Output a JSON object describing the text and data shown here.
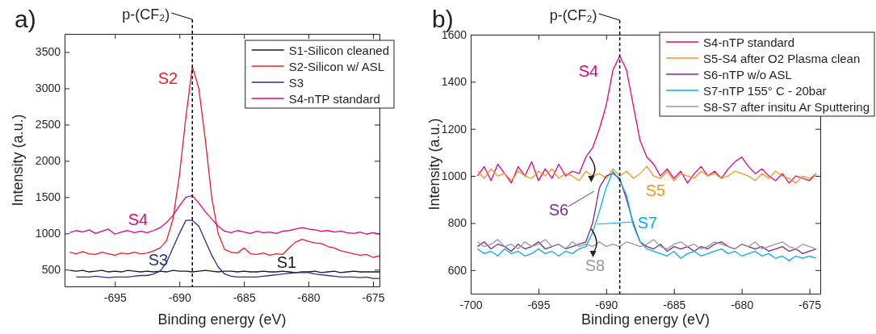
{
  "chart_data": [
    {
      "type": "line",
      "annotations": [
        "a)",
        "S2",
        "S4",
        "S3",
        "S1"
      ],
      "xlabel": "Binding energy (eV)",
      "ylabel": "Intensity (a.u.)",
      "xlim": [
        -698.9,
        -674.5
      ],
      "xticks": [
        -695,
        -690,
        -685,
        -680,
        -675
      ],
      "ylim": [
        270,
        3750
      ],
      "yticks": [
        500,
        1000,
        1500,
        2000,
        2500,
        3000,
        3500
      ],
      "legend": "top right",
      "ref_lines": [
        {
          "axis": "x",
          "value": -689,
          "label": "p-(CF₂)",
          "line_style": "dashed",
          "color": "#000000"
        }
      ],
      "x": [
        -698.5,
        -698,
        -697.5,
        -697,
        -696.5,
        -696,
        -695.5,
        -695,
        -694.5,
        -694,
        -693.5,
        -693,
        -692.5,
        -692,
        -691.5,
        -691,
        -690.5,
        -690,
        -689.5,
        -689,
        -688.5,
        -688,
        -687.5,
        -687,
        -686.5,
        -686,
        -685.5,
        -685,
        -684.5,
        -684,
        -683.5,
        -683,
        -682.5,
        -682,
        -681.5,
        -681,
        -680.5,
        -680,
        -679.5,
        -679,
        -678.5,
        -678,
        -677.5,
        -677,
        -676.5,
        -676,
        -675.5,
        -675,
        -674.5
      ],
      "series": [
        {
          "name": "S1-Silicon cleaned",
          "color": "#1a1a1a",
          "values": [
            490,
            480,
            490,
            470,
            480,
            490,
            470,
            480,
            470,
            490,
            480,
            470,
            480,
            470,
            480,
            470,
            490,
            480,
            480,
            470,
            480,
            490,
            480,
            470,
            480,
            480,
            470,
            480,
            470,
            470,
            480,
            470,
            470,
            480,
            470,
            460,
            470,
            470,
            480,
            460,
            470,
            480,
            460,
            470,
            480,
            470,
            470,
            470,
            470
          ]
        },
        {
          "name": "S2-Silicon w/ ASL",
          "color": "#ee1c25",
          "values": [
            740,
            720,
            750,
            720,
            710,
            740,
            720,
            700,
            730,
            720,
            740,
            720,
            730,
            760,
            800,
            900,
            1200,
            1800,
            2600,
            3300,
            3000,
            2300,
            1500,
            1000,
            780,
            740,
            730,
            800,
            720,
            710,
            730,
            700,
            720,
            710,
            800,
            880,
            920,
            890,
            870,
            860,
            820,
            800,
            760,
            740,
            720,
            700,
            710,
            670,
            690
          ]
        },
        {
          "name": "S3",
          "color": "#262f8f",
          "values": [
            null,
            400,
            400,
            400,
            410,
            400,
            390,
            400,
            400,
            400,
            410,
            420,
            420,
            440,
            480,
            600,
            800,
            1000,
            1180,
            1180,
            1100,
            900,
            700,
            540,
            440,
            410,
            400,
            400,
            400,
            400,
            410,
            420,
            430,
            440,
            450,
            460,
            460,
            460,
            440,
            430,
            420,
            410,
            400,
            400,
            400,
            390,
            400,
            380,
            380
          ]
        },
        {
          "name": "S4-nTP standard",
          "color": "#e6007e",
          "values": [
            1010,
            1040,
            1020,
            1050,
            1000,
            1030,
            1060,
            990,
            1020,
            1040,
            1010,
            1030,
            1010,
            1040,
            1080,
            1150,
            1250,
            1380,
            1500,
            1520,
            1420,
            1300,
            1200,
            1100,
            1030,
            1010,
            1040,
            1020,
            1000,
            1030,
            1010,
            1020,
            1000,
            1030,
            1040,
            1060,
            1080,
            1060,
            1050,
            1030,
            1040,
            1020,
            1030,
            1010,
            1000,
            1020,
            990,
            1010,
            990
          ]
        }
      ]
    },
    {
      "type": "line",
      "annotations": [
        "b)",
        "S4",
        "S5",
        "S6",
        "S7",
        "S8"
      ],
      "xlabel": "Binding energy (eV)",
      "ylabel": "Intensity (a.u.)",
      "xlim": [
        -700,
        -674.2
      ],
      "xticks": [
        -700,
        -695,
        -690,
        -685,
        -680,
        -675
      ],
      "ylim": [
        500,
        1600
      ],
      "yticks": [
        600,
        800,
        1000,
        1200,
        1400,
        1600
      ],
      "legend": "top right",
      "ref_lines": [
        {
          "axis": "x",
          "value": -689,
          "label": "p-(CF₂)",
          "line_style": "dashed",
          "color": "#000000"
        }
      ],
      "x": [
        -699.5,
        -699,
        -698.5,
        -698,
        -697.5,
        -697,
        -696.5,
        -696,
        -695.5,
        -695,
        -694.5,
        -694,
        -693.5,
        -693,
        -692.5,
        -692,
        -691.5,
        -691,
        -690.5,
        -690,
        -689.5,
        -689,
        -688.5,
        -688,
        -687.5,
        -687,
        -686.5,
        -686,
        -685.5,
        -685,
        -684.5,
        -684,
        -683.5,
        -683,
        -682.5,
        -682,
        -681.5,
        -681,
        -680.5,
        -680,
        -679.5,
        -679,
        -678.5,
        -678,
        -677.5,
        -677,
        -676.5,
        -676,
        -675.5,
        -675,
        -674.5
      ],
      "series": [
        {
          "name": "S4-nTP standard",
          "color": "#e6007e",
          "values": [
            1000,
            1040,
            980,
            1050,
            1010,
            970,
            1040,
            1000,
            1060,
            980,
            1030,
            990,
            1050,
            1000,
            1020,
            1010,
            1080,
            1120,
            1200,
            1300,
            1450,
            1510,
            1450,
            1300,
            1150,
            1080,
            1050,
            1000,
            1030,
            990,
            1020,
            970,
            1010,
            1040,
            1000,
            1020,
            990,
            1030,
            1060,
            1080,
            1040,
            1010,
            1030,
            1000,
            980,
            1010,
            970,
            1000,
            990,
            980,
            1010
          ]
        },
        {
          "name": "S5-S4 after O2 Plasma clean",
          "color": "#f7941d",
          "values": [
            1020,
            990,
            1030,
            1000,
            1010,
            980,
            1020,
            1000,
            990,
            1020,
            1000,
            1030,
            990,
            1010,
            1000,
            980,
            1020,
            1000,
            1010,
            990,
            1030,
            1000,
            1020,
            990,
            1010,
            1040,
            1000,
            990,
            1020,
            980,
            1010,
            1000,
            990,
            1020,
            1000,
            1010,
            990,
            1000,
            1020,
            1010,
            1000,
            980,
            1010,
            990,
            1020,
            1000,
            990,
            970,
            1000,
            990,
            1010
          ]
        },
        {
          "name": "S6-nTP w/o ASL",
          "color": "#7b2b8f",
          "values": [
            700,
            720,
            690,
            710,
            700,
            680,
            710,
            690,
            700,
            720,
            690,
            700,
            710,
            690,
            700,
            710,
            720,
            800,
            950,
            1000,
            1010,
            990,
            900,
            800,
            720,
            700,
            690,
            710,
            680,
            700,
            690,
            700,
            680,
            700,
            690,
            710,
            720,
            700,
            690,
            710,
            700,
            690,
            700,
            680,
            690,
            700,
            680,
            690,
            670,
            680,
            690
          ]
        },
        {
          "name": "S7-nTP 155° C - 20bar",
          "color": "#00aeef",
          "values": [
            690,
            670,
            680,
            660,
            690,
            670,
            680,
            660,
            670,
            690,
            670,
            680,
            660,
            680,
            670,
            690,
            700,
            760,
            850,
            950,
            1020,
            980,
            920,
            790,
            720,
            690,
            680,
            670,
            660,
            680,
            650,
            670,
            680,
            660,
            670,
            680,
            690,
            670,
            680,
            660,
            670,
            680,
            660,
            670,
            650,
            660,
            640,
            660,
            650,
            660,
            650
          ]
        },
        {
          "name": "S8-S7 after insitu Ar Sputtering",
          "color": "#999999",
          "values": [
            720,
            700,
            710,
            730,
            700,
            710,
            690,
            720,
            700,
            710,
            730,
            700,
            710,
            690,
            720,
            700,
            710,
            700,
            720,
            700,
            710,
            700,
            720,
            710,
            700,
            710,
            730,
            700,
            690,
            710,
            720,
            700,
            710,
            690,
            700,
            720,
            710,
            700,
            690,
            710,
            700,
            720,
            690,
            700,
            710,
            720,
            700,
            690,
            710,
            700,
            690
          ]
        }
      ]
    }
  ]
}
